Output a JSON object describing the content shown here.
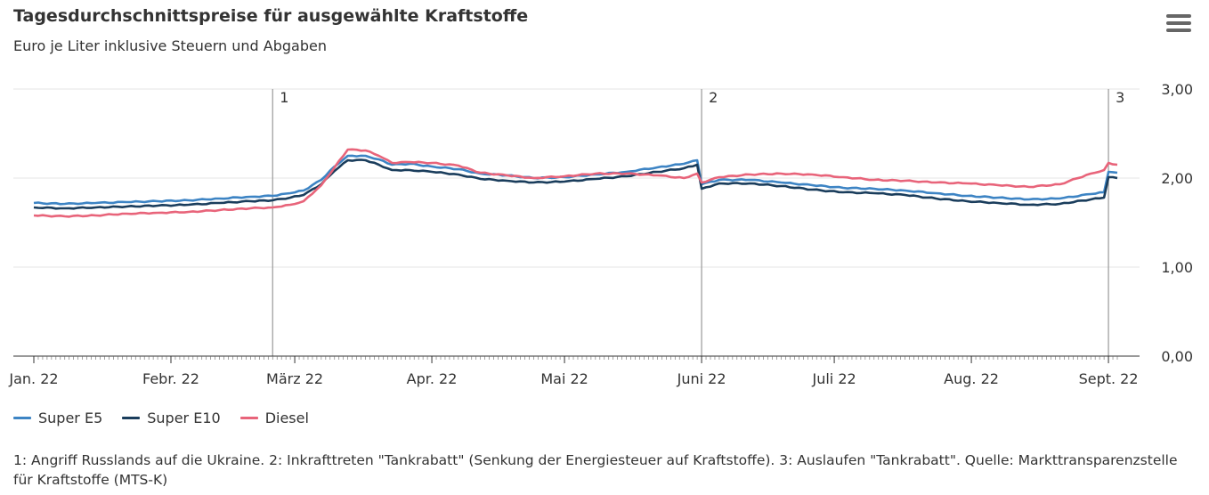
{
  "header": {
    "title": "Tagesdurchschnittspreise für ausgewählte Kraftstoffe",
    "subtitle": "Euro je Liter inklusive Steuern und Abgaben",
    "menu_icon": "hamburger-menu-icon"
  },
  "chart_data": {
    "type": "line",
    "title": "Tagesdurchschnittspreise für ausgewählte Kraftstoffe",
    "subtitle": "Euro je Liter inklusive Steuern und Abgaben",
    "x_start": "2022-01-01",
    "x_end": "2022-09-03",
    "x_ticks": [
      "Jan. 22",
      "Febr. 22",
      "März 22",
      "Apr. 22",
      "Mai 22",
      "Juni 22",
      "Juli 22",
      "Aug. 22",
      "Sept. 22"
    ],
    "x_tick_dates": [
      "2022-01-01",
      "2022-02-01",
      "2022-03-01",
      "2022-04-01",
      "2022-05-01",
      "2022-06-01",
      "2022-07-01",
      "2022-08-01",
      "2022-09-01"
    ],
    "y_ticks": [
      "0,00",
      "1,00",
      "2,00",
      "3,00"
    ],
    "y_tick_values": [
      0,
      1,
      2,
      3
    ],
    "ylim": [
      0,
      3
    ],
    "grid": "horizontal",
    "legend_position": "bottom-left",
    "event_lines": [
      {
        "label": "1",
        "date": "2022-02-24"
      },
      {
        "label": "2",
        "date": "2022-06-01"
      },
      {
        "label": "3",
        "date": "2022-09-01"
      }
    ],
    "series": [
      {
        "name": "Super E5",
        "color": "#3d84c4",
        "points": [
          [
            "2022-01-01",
            1.72
          ],
          [
            "2022-01-08",
            1.71
          ],
          [
            "2022-01-15",
            1.72
          ],
          [
            "2022-01-22",
            1.73
          ],
          [
            "2022-01-29",
            1.74
          ],
          [
            "2022-02-05",
            1.75
          ],
          [
            "2022-02-12",
            1.77
          ],
          [
            "2022-02-19",
            1.79
          ],
          [
            "2022-02-24",
            1.8
          ],
          [
            "2022-02-28",
            1.83
          ],
          [
            "2022-03-03",
            1.86
          ],
          [
            "2022-03-07",
            1.98
          ],
          [
            "2022-03-10",
            2.13
          ],
          [
            "2022-03-13",
            2.25
          ],
          [
            "2022-03-17",
            2.25
          ],
          [
            "2022-03-20",
            2.21
          ],
          [
            "2022-03-23",
            2.15
          ],
          [
            "2022-03-27",
            2.16
          ],
          [
            "2022-04-01",
            2.13
          ],
          [
            "2022-04-07",
            2.1
          ],
          [
            "2022-04-12",
            2.05
          ],
          [
            "2022-04-18",
            2.03
          ],
          [
            "2022-04-24",
            2.0
          ],
          [
            "2022-05-01",
            2.01
          ],
          [
            "2022-05-08",
            2.04
          ],
          [
            "2022-05-15",
            2.07
          ],
          [
            "2022-05-22",
            2.12
          ],
          [
            "2022-05-28",
            2.16
          ],
          [
            "2022-05-31",
            2.2
          ],
          [
            "2022-06-01",
            1.93
          ],
          [
            "2022-06-05",
            1.98
          ],
          [
            "2022-06-12",
            1.98
          ],
          [
            "2022-06-19",
            1.95
          ],
          [
            "2022-06-26",
            1.92
          ],
          [
            "2022-07-03",
            1.89
          ],
          [
            "2022-07-10",
            1.88
          ],
          [
            "2022-07-17",
            1.86
          ],
          [
            "2022-07-24",
            1.83
          ],
          [
            "2022-07-31",
            1.8
          ],
          [
            "2022-08-07",
            1.78
          ],
          [
            "2022-08-14",
            1.76
          ],
          [
            "2022-08-21",
            1.77
          ],
          [
            "2022-08-28",
            1.82
          ],
          [
            "2022-08-31",
            1.84
          ],
          [
            "2022-09-01",
            2.07
          ],
          [
            "2022-09-03",
            2.06
          ]
        ]
      },
      {
        "name": "Super E10",
        "color": "#1a3d5c",
        "points": [
          [
            "2022-01-01",
            1.67
          ],
          [
            "2022-01-08",
            1.66
          ],
          [
            "2022-01-15",
            1.67
          ],
          [
            "2022-01-22",
            1.68
          ],
          [
            "2022-01-29",
            1.69
          ],
          [
            "2022-02-05",
            1.7
          ],
          [
            "2022-02-12",
            1.72
          ],
          [
            "2022-02-19",
            1.74
          ],
          [
            "2022-02-24",
            1.75
          ],
          [
            "2022-02-28",
            1.78
          ],
          [
            "2022-03-03",
            1.81
          ],
          [
            "2022-03-07",
            1.93
          ],
          [
            "2022-03-10",
            2.08
          ],
          [
            "2022-03-13",
            2.2
          ],
          [
            "2022-03-17",
            2.2
          ],
          [
            "2022-03-20",
            2.15
          ],
          [
            "2022-03-23",
            2.09
          ],
          [
            "2022-03-27",
            2.09
          ],
          [
            "2022-04-01",
            2.07
          ],
          [
            "2022-04-07",
            2.04
          ],
          [
            "2022-04-12",
            1.99
          ],
          [
            "2022-04-18",
            1.97
          ],
          [
            "2022-04-24",
            1.95
          ],
          [
            "2022-05-01",
            1.96
          ],
          [
            "2022-05-08",
            1.99
          ],
          [
            "2022-05-15",
            2.02
          ],
          [
            "2022-05-22",
            2.07
          ],
          [
            "2022-05-28",
            2.11
          ],
          [
            "2022-05-31",
            2.15
          ],
          [
            "2022-06-01",
            1.88
          ],
          [
            "2022-06-05",
            1.94
          ],
          [
            "2022-06-12",
            1.94
          ],
          [
            "2022-06-19",
            1.91
          ],
          [
            "2022-06-26",
            1.87
          ],
          [
            "2022-07-03",
            1.84
          ],
          [
            "2022-07-10",
            1.83
          ],
          [
            "2022-07-17",
            1.81
          ],
          [
            "2022-07-24",
            1.77
          ],
          [
            "2022-07-31",
            1.74
          ],
          [
            "2022-08-07",
            1.72
          ],
          [
            "2022-08-14",
            1.7
          ],
          [
            "2022-08-21",
            1.71
          ],
          [
            "2022-08-28",
            1.76
          ],
          [
            "2022-08-31",
            1.78
          ],
          [
            "2022-09-01",
            2.01
          ],
          [
            "2022-09-03",
            2.0
          ]
        ]
      },
      {
        "name": "Diesel",
        "color": "#e8647a",
        "points": [
          [
            "2022-01-01",
            1.58
          ],
          [
            "2022-01-08",
            1.57
          ],
          [
            "2022-01-15",
            1.58
          ],
          [
            "2022-01-22",
            1.6
          ],
          [
            "2022-01-29",
            1.61
          ],
          [
            "2022-02-05",
            1.62
          ],
          [
            "2022-02-12",
            1.64
          ],
          [
            "2022-02-19",
            1.66
          ],
          [
            "2022-02-24",
            1.67
          ],
          [
            "2022-02-28",
            1.7
          ],
          [
            "2022-03-03",
            1.74
          ],
          [
            "2022-03-07",
            1.92
          ],
          [
            "2022-03-10",
            2.12
          ],
          [
            "2022-03-13",
            2.32
          ],
          [
            "2022-03-17",
            2.31
          ],
          [
            "2022-03-20",
            2.25
          ],
          [
            "2022-03-23",
            2.17
          ],
          [
            "2022-03-27",
            2.18
          ],
          [
            "2022-04-01",
            2.17
          ],
          [
            "2022-04-07",
            2.14
          ],
          [
            "2022-04-12",
            2.06
          ],
          [
            "2022-04-18",
            2.03
          ],
          [
            "2022-04-24",
            2.0
          ],
          [
            "2022-05-01",
            2.02
          ],
          [
            "2022-05-08",
            2.05
          ],
          [
            "2022-05-15",
            2.05
          ],
          [
            "2022-05-22",
            2.03
          ],
          [
            "2022-05-28",
            2.0
          ],
          [
            "2022-05-31",
            2.05
          ],
          [
            "2022-06-01",
            1.95
          ],
          [
            "2022-06-05",
            2.01
          ],
          [
            "2022-06-12",
            2.04
          ],
          [
            "2022-06-19",
            2.05
          ],
          [
            "2022-06-26",
            2.04
          ],
          [
            "2022-07-03",
            2.01
          ],
          [
            "2022-07-10",
            1.98
          ],
          [
            "2022-07-17",
            1.97
          ],
          [
            "2022-07-24",
            1.95
          ],
          [
            "2022-07-31",
            1.94
          ],
          [
            "2022-08-07",
            1.92
          ],
          [
            "2022-08-14",
            1.9
          ],
          [
            "2022-08-21",
            1.93
          ],
          [
            "2022-08-28",
            2.05
          ],
          [
            "2022-08-31",
            2.09
          ],
          [
            "2022-09-01",
            2.17
          ],
          [
            "2022-09-03",
            2.15
          ]
        ]
      }
    ]
  },
  "legend": {
    "items": [
      {
        "label": "Super E5",
        "color": "#3d84c4"
      },
      {
        "label": "Super E10",
        "color": "#1a3d5c"
      },
      {
        "label": "Diesel",
        "color": "#e8647a"
      }
    ]
  },
  "footnote": {
    "text": "1: Angriff Russlands auf die Ukraine. 2: Inkrafttreten \"Tankrabatt\" (Senkung der Energiesteuer auf Kraftstoffe). 3: Auslaufen \"Tankrabatt\". Quelle: Markttransparenzstelle für Kraftstoffe (MTS-K)"
  }
}
